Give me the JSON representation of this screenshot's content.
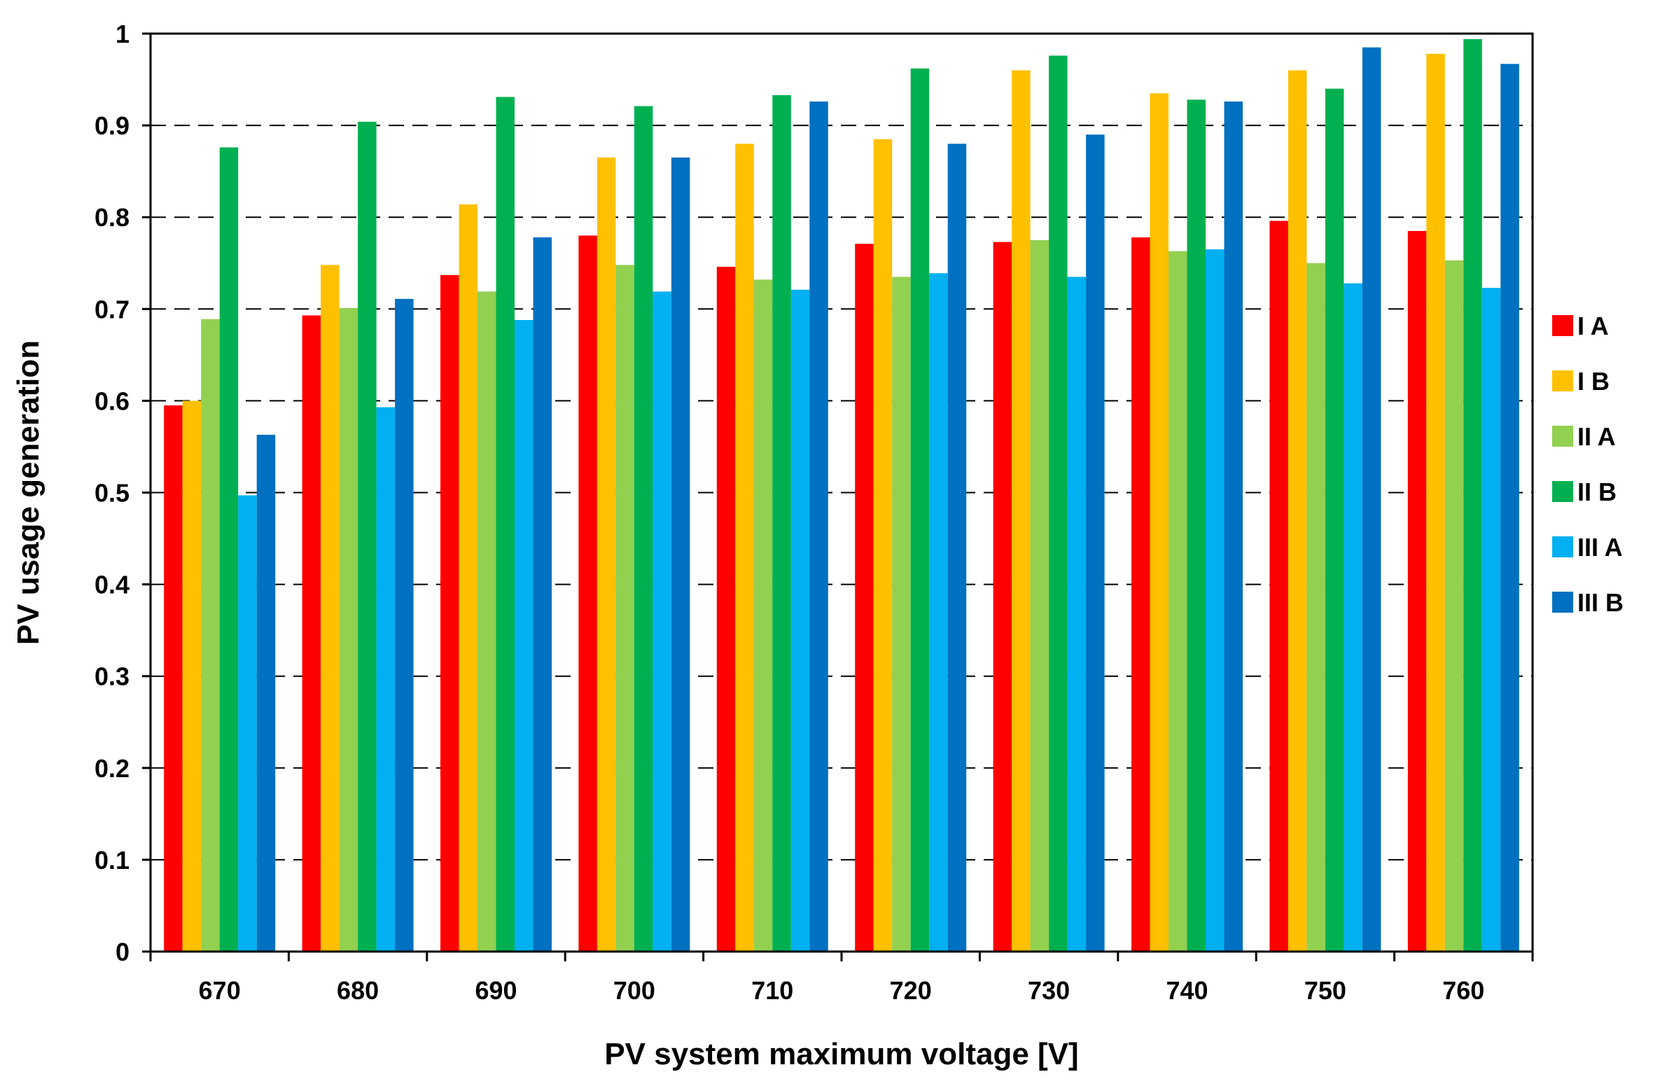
{
  "chart_data": {
    "type": "bar",
    "title": "",
    "xlabel": "PV system maximum  voltage [V]",
    "ylabel": "PV usage generation",
    "ylim": [
      0,
      1
    ],
    "yticks": [
      "0",
      "0.1",
      "0.2",
      "0.3",
      "0.4",
      "0.5",
      "0.6",
      "0.7",
      "0.8",
      "0.9",
      "1"
    ],
    "grid": "horizontal-dashed",
    "legend_position": "right",
    "categories": [
      "670",
      "680",
      "690",
      "700",
      "710",
      "720",
      "730",
      "740",
      "750",
      "760"
    ],
    "series": [
      {
        "name": "I A",
        "color": "#ff0000",
        "values": [
          0.595,
          0.693,
          0.737,
          0.78,
          0.746,
          0.771,
          0.773,
          0.778,
          0.796,
          0.785
        ]
      },
      {
        "name": "I B",
        "color": "#ffc000",
        "values": [
          0.6,
          0.748,
          0.814,
          0.865,
          0.88,
          0.885,
          0.96,
          0.935,
          0.96,
          0.978
        ]
      },
      {
        "name": "II A",
        "color": "#92d050",
        "values": [
          0.689,
          0.701,
          0.719,
          0.748,
          0.732,
          0.735,
          0.775,
          0.763,
          0.75,
          0.753
        ]
      },
      {
        "name": "II B",
        "color": "#00b050",
        "values": [
          0.876,
          0.904,
          0.931,
          0.921,
          0.933,
          0.962,
          0.976,
          0.928,
          0.94,
          0.994
        ]
      },
      {
        "name": "III A",
        "color": "#00b0f0",
        "values": [
          0.497,
          0.593,
          0.688,
          0.719,
          0.721,
          0.739,
          0.735,
          0.765,
          0.728,
          0.723
        ]
      },
      {
        "name": "III B",
        "color": "#0070c0",
        "values": [
          0.563,
          0.711,
          0.778,
          0.865,
          0.926,
          0.88,
          0.89,
          0.926,
          0.985,
          0.967
        ]
      }
    ]
  }
}
